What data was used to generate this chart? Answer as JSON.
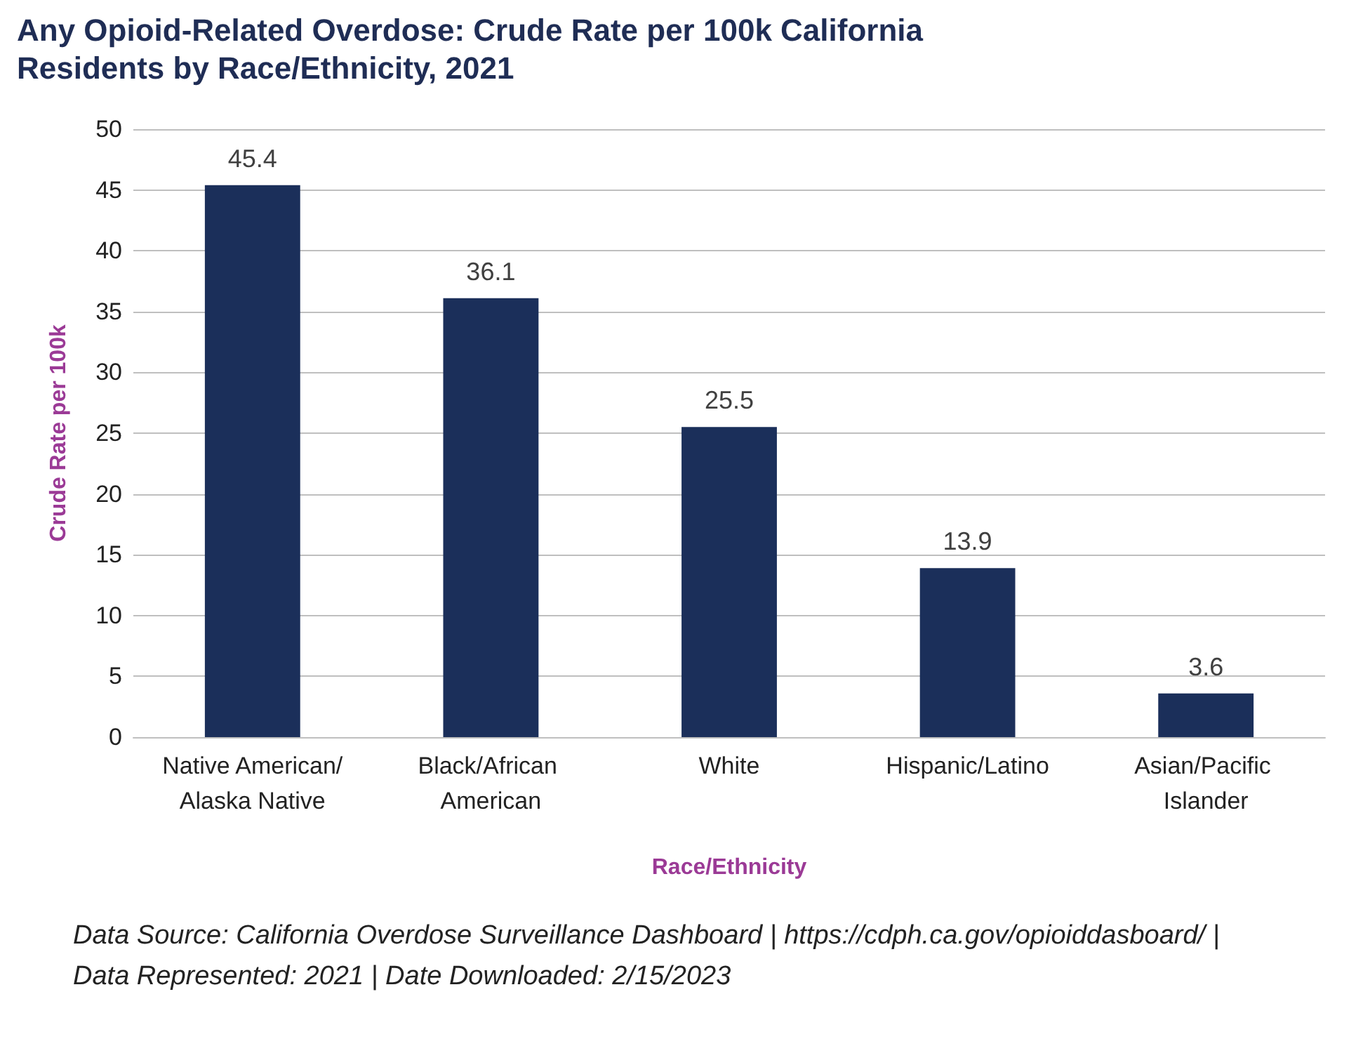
{
  "chart_data": {
    "type": "bar",
    "title": "Any Opioid-Related Overdose: Crude Rate per 100k California Residents by Race/Ethnicity, 2021",
    "xlabel": "Race/Ethnicity",
    "ylabel": "Crude Rate per 100k",
    "categories": [
      "Native American/Alaska Native",
      "Black/African American",
      "White",
      "Hispanic/Latino",
      "Asian/Pacific Islander"
    ],
    "values": [
      45.4,
      36.1,
      25.5,
      13.9,
      3.6
    ],
    "color": "#1b2f5a",
    "ylim": [
      0,
      50
    ],
    "yticks": [
      0,
      5,
      10,
      15,
      20,
      25,
      30,
      35,
      40,
      45,
      50
    ],
    "grid": "y",
    "data_labels": true,
    "annotations": [
      "Data Source: California Overdose Surveillance Dashboard | https://cdph.ca.gov/opioiddasboard/ | Data Represented: 2021 | Date Downloaded: 2/15/2023"
    ]
  }
}
